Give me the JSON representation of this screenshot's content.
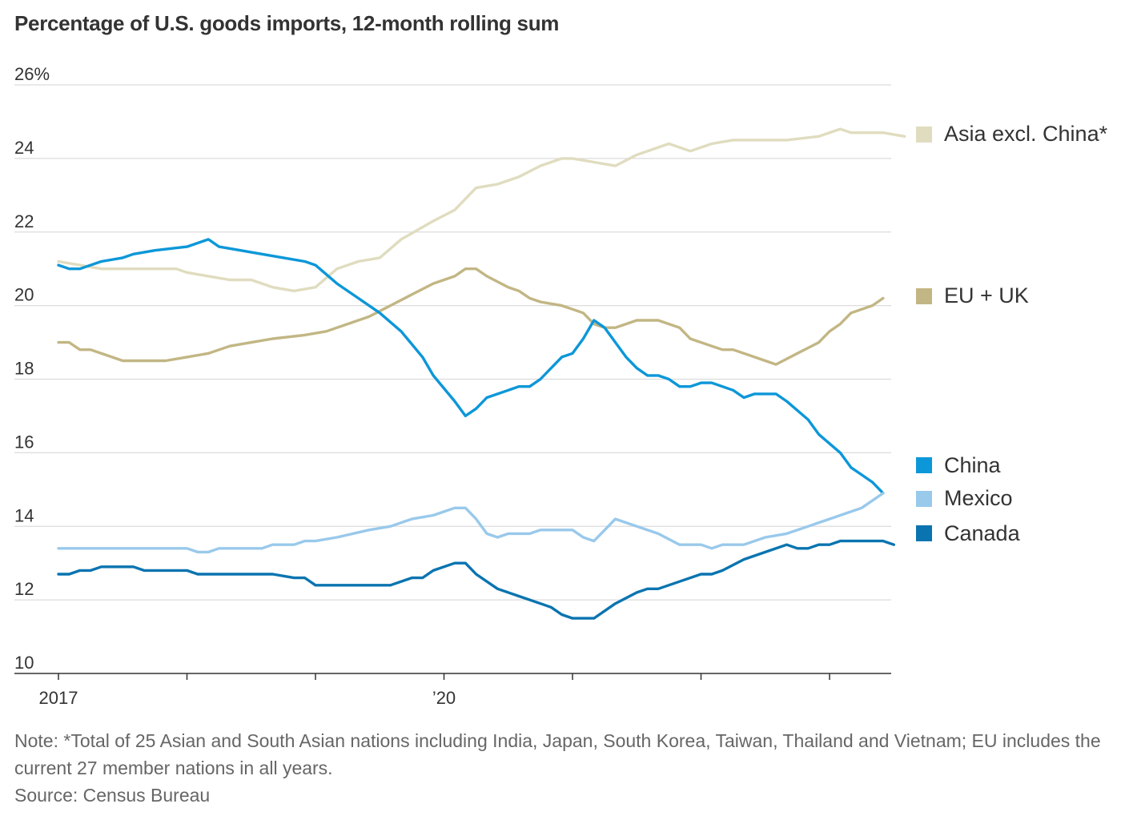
{
  "chart_data": {
    "type": "line",
    "title": "Percentage of U.S. goods imports, 12-month rolling sum",
    "y_ticks": [
      "26%",
      "24",
      "22",
      "20",
      "18",
      "16",
      "14",
      "12",
      "10"
    ],
    "ylim": [
      10,
      26
    ],
    "x_labels": [
      {
        "date": "2017-01",
        "label": "2017"
      },
      {
        "date": "2020-01",
        "label": "’20"
      }
    ],
    "x_tick_dates": [
      "2017-01",
      "2018-01",
      "2019-01",
      "2020-01",
      "2021-01",
      "2022-01",
      "2023-01"
    ],
    "x_range": [
      "2017-01",
      "2023-06"
    ],
    "grid": true,
    "legend_position": "right",
    "series": [
      {
        "name": "Asia excl. China*",
        "color": "#e0dcbf",
        "points": [
          [
            "2017-01",
            21.2
          ],
          [
            "2017-03",
            21.1
          ],
          [
            "2017-05",
            21.0
          ],
          [
            "2017-09",
            21.0
          ],
          [
            "2017-12",
            21.0
          ],
          [
            "2018-01",
            20.9
          ],
          [
            "2018-03",
            20.8
          ],
          [
            "2018-05",
            20.7
          ],
          [
            "2018-07",
            20.7
          ],
          [
            "2018-09",
            20.5
          ],
          [
            "2018-11",
            20.4
          ],
          [
            "2019-01",
            20.5
          ],
          [
            "2019-03",
            21.0
          ],
          [
            "2019-05",
            21.2
          ],
          [
            "2019-07",
            21.3
          ],
          [
            "2019-09",
            21.8
          ],
          [
            "2019-12",
            22.3
          ],
          [
            "2020-02",
            22.6
          ],
          [
            "2020-04",
            23.2
          ],
          [
            "2020-06",
            23.3
          ],
          [
            "2020-08",
            23.5
          ],
          [
            "2020-10",
            23.8
          ],
          [
            "2020-12",
            24.0
          ],
          [
            "2021-01",
            24.0
          ],
          [
            "2021-03",
            23.9
          ],
          [
            "2021-05",
            23.8
          ],
          [
            "2021-07",
            24.1
          ],
          [
            "2021-09",
            24.3
          ],
          [
            "2021-10",
            24.4
          ],
          [
            "2021-12",
            24.2
          ],
          [
            "2022-02",
            24.4
          ],
          [
            "2022-04",
            24.5
          ],
          [
            "2022-06",
            24.5
          ],
          [
            "2022-09",
            24.5
          ],
          [
            "2022-12",
            24.6
          ],
          [
            "2023-02",
            24.8
          ],
          [
            "2023-03",
            24.7
          ],
          [
            "2023-06",
            24.7
          ],
          [
            "2023-08",
            24.6
          ]
        ]
      },
      {
        "name": "EU + UK",
        "color": "#c2b684",
        "points": [
          [
            "2017-01",
            19.0
          ],
          [
            "2017-02",
            19.0
          ],
          [
            "2017-03",
            18.8
          ],
          [
            "2017-04",
            18.8
          ],
          [
            "2017-06",
            18.6
          ],
          [
            "2017-07",
            18.5
          ],
          [
            "2017-11",
            18.5
          ],
          [
            "2018-01",
            18.6
          ],
          [
            "2018-03",
            18.7
          ],
          [
            "2018-05",
            18.9
          ],
          [
            "2018-07",
            19.0
          ],
          [
            "2018-09",
            19.1
          ],
          [
            "2018-12",
            19.2
          ],
          [
            "2019-02",
            19.3
          ],
          [
            "2019-04",
            19.5
          ],
          [
            "2019-06",
            19.7
          ],
          [
            "2019-08",
            20.0
          ],
          [
            "2019-10",
            20.3
          ],
          [
            "2019-12",
            20.6
          ],
          [
            "2020-01",
            20.7
          ],
          [
            "2020-02",
            20.8
          ],
          [
            "2020-03",
            21.0
          ],
          [
            "2020-04",
            21.0
          ],
          [
            "2020-05",
            20.8
          ],
          [
            "2020-07",
            20.5
          ],
          [
            "2020-08",
            20.4
          ],
          [
            "2020-09",
            20.2
          ],
          [
            "2020-10",
            20.1
          ],
          [
            "2020-12",
            20.0
          ],
          [
            "2021-01",
            19.9
          ],
          [
            "2021-02",
            19.8
          ],
          [
            "2021-03",
            19.5
          ],
          [
            "2021-04",
            19.4
          ],
          [
            "2021-05",
            19.4
          ],
          [
            "2021-06",
            19.5
          ],
          [
            "2021-07",
            19.6
          ],
          [
            "2021-09",
            19.6
          ],
          [
            "2021-10",
            19.5
          ],
          [
            "2021-11",
            19.4
          ],
          [
            "2021-12",
            19.1
          ],
          [
            "2022-02",
            18.9
          ],
          [
            "2022-03",
            18.8
          ],
          [
            "2022-04",
            18.8
          ],
          [
            "2022-06",
            18.6
          ],
          [
            "2022-08",
            18.4
          ],
          [
            "2022-10",
            18.7
          ],
          [
            "2022-12",
            19.0
          ],
          [
            "2023-01",
            19.3
          ],
          [
            "2023-02",
            19.5
          ],
          [
            "2023-03",
            19.8
          ],
          [
            "2023-05",
            20.0
          ],
          [
            "2023-06",
            20.2
          ]
        ]
      },
      {
        "name": "China",
        "color": "#0c97d8",
        "points": [
          [
            "2017-01",
            21.1
          ],
          [
            "2017-02",
            21.0
          ],
          [
            "2017-03",
            21.0
          ],
          [
            "2017-05",
            21.2
          ],
          [
            "2017-07",
            21.3
          ],
          [
            "2017-08",
            21.4
          ],
          [
            "2017-10",
            21.5
          ],
          [
            "2018-01",
            21.6
          ],
          [
            "2018-03",
            21.8
          ],
          [
            "2018-04",
            21.6
          ],
          [
            "2018-06",
            21.5
          ],
          [
            "2018-08",
            21.4
          ],
          [
            "2018-10",
            21.3
          ],
          [
            "2018-12",
            21.2
          ],
          [
            "2019-01",
            21.1
          ],
          [
            "2019-03",
            20.6
          ],
          [
            "2019-05",
            20.2
          ],
          [
            "2019-07",
            19.8
          ],
          [
            "2019-09",
            19.3
          ],
          [
            "2019-11",
            18.6
          ],
          [
            "2019-12",
            18.1
          ],
          [
            "2020-02",
            17.4
          ],
          [
            "2020-03",
            17.0
          ],
          [
            "2020-04",
            17.2
          ],
          [
            "2020-05",
            17.5
          ],
          [
            "2020-07",
            17.7
          ],
          [
            "2020-08",
            17.8
          ],
          [
            "2020-09",
            17.8
          ],
          [
            "2020-10",
            18.0
          ],
          [
            "2020-12",
            18.6
          ],
          [
            "2021-01",
            18.7
          ],
          [
            "2021-02",
            19.1
          ],
          [
            "2021-03",
            19.6
          ],
          [
            "2021-04",
            19.4
          ],
          [
            "2021-06",
            18.6
          ],
          [
            "2021-07",
            18.3
          ],
          [
            "2021-08",
            18.1
          ],
          [
            "2021-09",
            18.1
          ],
          [
            "2021-10",
            18.0
          ],
          [
            "2021-11",
            17.8
          ],
          [
            "2021-12",
            17.8
          ],
          [
            "2022-01",
            17.9
          ],
          [
            "2022-02",
            17.9
          ],
          [
            "2022-04",
            17.7
          ],
          [
            "2022-05",
            17.5
          ],
          [
            "2022-06",
            17.6
          ],
          [
            "2022-08",
            17.6
          ],
          [
            "2022-09",
            17.4
          ],
          [
            "2022-11",
            16.9
          ],
          [
            "2022-12",
            16.5
          ],
          [
            "2023-02",
            16.0
          ],
          [
            "2023-03",
            15.6
          ],
          [
            "2023-04",
            15.4
          ],
          [
            "2023-05",
            15.2
          ],
          [
            "2023-06",
            14.9
          ]
        ]
      },
      {
        "name": "Mexico",
        "color": "#99c9eb",
        "points": [
          [
            "2017-01",
            13.4
          ],
          [
            "2018-01",
            13.4
          ],
          [
            "2018-02",
            13.3
          ],
          [
            "2018-03",
            13.3
          ],
          [
            "2018-04",
            13.4
          ],
          [
            "2018-08",
            13.4
          ],
          [
            "2018-09",
            13.5
          ],
          [
            "2018-11",
            13.5
          ],
          [
            "2018-12",
            13.6
          ],
          [
            "2019-01",
            13.6
          ],
          [
            "2019-03",
            13.7
          ],
          [
            "2019-06",
            13.9
          ],
          [
            "2019-08",
            14.0
          ],
          [
            "2019-10",
            14.2
          ],
          [
            "2019-12",
            14.3
          ],
          [
            "2020-02",
            14.5
          ],
          [
            "2020-03",
            14.5
          ],
          [
            "2020-04",
            14.2
          ],
          [
            "2020-05",
            13.8
          ],
          [
            "2020-06",
            13.7
          ],
          [
            "2020-07",
            13.8
          ],
          [
            "2020-09",
            13.8
          ],
          [
            "2020-10",
            13.9
          ],
          [
            "2021-01",
            13.9
          ],
          [
            "2021-02",
            13.7
          ],
          [
            "2021-03",
            13.6
          ],
          [
            "2021-05",
            14.2
          ],
          [
            "2021-09",
            13.8
          ],
          [
            "2021-11",
            13.5
          ],
          [
            "2022-01",
            13.5
          ],
          [
            "2022-02",
            13.4
          ],
          [
            "2022-03",
            13.5
          ],
          [
            "2022-05",
            13.5
          ],
          [
            "2022-07",
            13.7
          ],
          [
            "2022-09",
            13.8
          ],
          [
            "2022-11",
            14.0
          ],
          [
            "2023-01",
            14.2
          ],
          [
            "2023-03",
            14.4
          ],
          [
            "2023-04",
            14.5
          ],
          [
            "2023-06",
            14.9
          ]
        ]
      },
      {
        "name": "Canada",
        "color": "#0a74b0",
        "points": [
          [
            "2017-01",
            12.7
          ],
          [
            "2017-02",
            12.7
          ],
          [
            "2017-03",
            12.8
          ],
          [
            "2017-04",
            12.8
          ],
          [
            "2017-05",
            12.9
          ],
          [
            "2017-08",
            12.9
          ],
          [
            "2017-09",
            12.8
          ],
          [
            "2018-01",
            12.8
          ],
          [
            "2018-02",
            12.7
          ],
          [
            "2018-08",
            12.7
          ],
          [
            "2018-09",
            12.7
          ],
          [
            "2018-11",
            12.6
          ],
          [
            "2018-12",
            12.6
          ],
          [
            "2019-01",
            12.4
          ],
          [
            "2019-08",
            12.4
          ],
          [
            "2019-10",
            12.6
          ],
          [
            "2019-11",
            12.6
          ],
          [
            "2019-12",
            12.8
          ],
          [
            "2020-02",
            13.0
          ],
          [
            "2020-03",
            13.0
          ],
          [
            "2020-04",
            12.7
          ],
          [
            "2020-06",
            12.3
          ],
          [
            "2020-08",
            12.1
          ],
          [
            "2020-10",
            11.9
          ],
          [
            "2020-11",
            11.8
          ],
          [
            "2020-12",
            11.6
          ],
          [
            "2021-01",
            11.5
          ],
          [
            "2021-03",
            11.5
          ],
          [
            "2021-05",
            11.9
          ],
          [
            "2021-07",
            12.2
          ],
          [
            "2021-08",
            12.3
          ],
          [
            "2021-09",
            12.3
          ],
          [
            "2021-11",
            12.5
          ],
          [
            "2022-01",
            12.7
          ],
          [
            "2022-02",
            12.7
          ],
          [
            "2022-03",
            12.8
          ],
          [
            "2022-05",
            13.1
          ],
          [
            "2022-07",
            13.3
          ],
          [
            "2022-09",
            13.5
          ],
          [
            "2022-10",
            13.4
          ],
          [
            "2022-11",
            13.4
          ],
          [
            "2022-12",
            13.5
          ],
          [
            "2023-01",
            13.5
          ],
          [
            "2023-02",
            13.6
          ],
          [
            "2023-06",
            13.6
          ],
          [
            "2023-07",
            13.5
          ]
        ]
      }
    ],
    "legend": [
      {
        "label": "Asia excl. China*",
        "color": "#e0dcbf",
        "value": 24.6
      },
      {
        "label": "EU + UK",
        "color": "#c2b684",
        "value": 20.2
      },
      {
        "label": "China",
        "color": "#0c97d8",
        "value": 15.6
      },
      {
        "label": "Mexico",
        "color": "#99c9eb",
        "value": 14.7
      },
      {
        "label": "Canada",
        "color": "#0a74b0",
        "value": 13.75
      }
    ]
  },
  "note": {
    "text": "Note: *Total of 25 Asian and South Asian nations including India, Japan, South Korea, Taiwan, Thailand and Vietnam; EU includes the current 27 member nations in all years.",
    "source": "Source: Census Bureau"
  }
}
